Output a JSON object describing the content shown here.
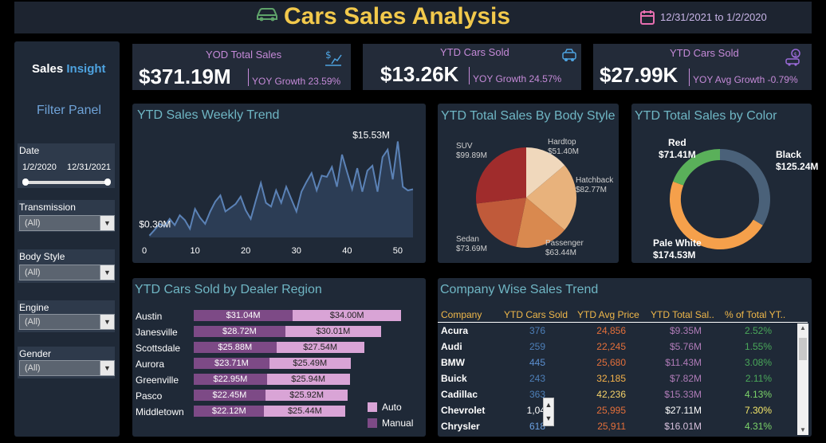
{
  "header": {
    "title": "Cars Sales Analysis",
    "date_range": "12/31/2021 to 1/2/2020"
  },
  "sidebar": {
    "brand_a": "Sales ",
    "brand_b": "Insight",
    "filter_panel": "Filter Panel",
    "date": {
      "label": "Date",
      "from": "1/2/2020",
      "to": "12/31/2021"
    },
    "filters": [
      {
        "label": "Transmission",
        "value": "(All)"
      },
      {
        "label": "Body Style",
        "value": "(All)"
      },
      {
        "label": "Engine",
        "value": "(All)"
      },
      {
        "label": "Gender",
        "value": "(All)"
      }
    ]
  },
  "kpis": [
    {
      "label": "YOD Total Sales",
      "value": "$371.19M",
      "sub": "YOY Growth 23.59%"
    },
    {
      "label": "YTD Cars Sold",
      "value": "$13.26K",
      "sub": "YOY Growth 24.57%"
    },
    {
      "label": "YTD Cars Sold",
      "value": "$27.99K",
      "sub": "YOY Avg Growth -0.79%"
    }
  ],
  "cards": {
    "weekly": "YTD Sales Weekly Trend",
    "body": "YTD Total Sales By Body Style",
    "color": "YTD Total Sales by Color",
    "region": "YTD Cars Sold by Dealer Region",
    "company": "Company Wise Sales Trend"
  },
  "colors": {
    "accent_title": "#f2c94c",
    "line": "#5b82b6",
    "auto": "#7d4a86",
    "manual": "#d9a4d6"
  },
  "chart_data": [
    {
      "type": "area",
      "title": "YTD Sales Weekly Trend",
      "xlabel": "",
      "ylabel": "",
      "xticks": [
        "0",
        "10",
        "20",
        "30",
        "40",
        "50"
      ],
      "xlim": [
        0,
        53
      ],
      "ylim": [
        0,
        16.5
      ],
      "x": [
        1,
        2,
        3,
        4,
        5,
        6,
        7,
        8,
        9,
        10,
        11,
        12,
        13,
        14,
        15,
        16,
        17,
        18,
        19,
        20,
        21,
        22,
        23,
        24,
        25,
        26,
        27,
        28,
        29,
        30,
        31,
        32,
        33,
        34,
        35,
        36,
        37,
        38,
        39,
        40,
        41,
        42,
        43,
        44,
        45,
        46,
        47,
        48,
        49,
        50,
        51,
        52,
        53
      ],
      "y": [
        0.3,
        1.2,
        2.2,
        1.8,
        3.0,
        2.0,
        3.6,
        2.8,
        1.4,
        4.6,
        3.2,
        2.2,
        4.2,
        5.8,
        6.8,
        4.2,
        4.8,
        5.4,
        6.6,
        4.4,
        3.0,
        6.0,
        8.8,
        5.6,
        5.0,
        7.6,
        5.6,
        8.2,
        6.2,
        4.2,
        7.4,
        9.0,
        10.4,
        7.6,
        10.0,
        9.8,
        11.4,
        8.2,
        13.4,
        10.6,
        7.8,
        11.2,
        7.4,
        10.8,
        11.6,
        7.4,
        13.0,
        14.2,
        9.4,
        15.53,
        8.2,
        7.6,
        7.8
      ],
      "annotations": [
        {
          "x": 1,
          "y": 0.3,
          "text": "$0.30M"
        },
        {
          "x": 50,
          "y": 15.53,
          "text": "$15.53M"
        }
      ]
    },
    {
      "type": "pie",
      "title": "YTD Total Sales By Body Style",
      "labels": [
        "Hardtop",
        "Hatchback",
        "Passenger",
        "Sedan",
        "SUV"
      ],
      "values": [
        51.4,
        82.77,
        63.44,
        73.69,
        99.89
      ],
      "value_labels": [
        "$51.40M",
        "$82.77M",
        "$63.44M",
        "$73.69M",
        "$99.89M"
      ],
      "colors": [
        "#f0d8bc",
        "#e8b27c",
        "#d9894f",
        "#c05a3a",
        "#a02c2c"
      ]
    },
    {
      "type": "pie",
      "subtype": "donut",
      "title": "YTD Total Sales by Color",
      "labels": [
        "Black",
        "Pale White",
        "Red"
      ],
      "values": [
        125.24,
        174.53,
        71.41
      ],
      "value_labels": [
        "$125.24M",
        "$174.53M",
        "$71.41M"
      ],
      "colors": [
        "#4a6179",
        "#f5a04b",
        "#5ab05a"
      ]
    },
    {
      "type": "bar",
      "orientation": "horizontal",
      "stacked": true,
      "title": "YTD Cars Sold by Dealer Region",
      "categories": [
        "Austin",
        "Janesville",
        "Scottsdale",
        "Aurora",
        "Greenville",
        "Pasco",
        "Middletown"
      ],
      "series": [
        {
          "name": "Auto",
          "values": [
            31.04,
            28.72,
            25.88,
            23.71,
            22.95,
            22.45,
            22.12
          ],
          "labels": [
            "$31.04M",
            "$28.72M",
            "$25.88M",
            "$23.71M",
            "$22.95M",
            "$22.45M",
            "$22.12M"
          ]
        },
        {
          "name": "Manual",
          "values": [
            34.0,
            30.01,
            27.54,
            25.49,
            25.94,
            25.92,
            25.44
          ],
          "labels": [
            "$34.00M",
            "$30.01M",
            "$27.54M",
            "$25.49M",
            "$25.94M",
            "$25.92M",
            "$25.44M"
          ]
        }
      ],
      "legend": "bottom-right"
    },
    {
      "type": "table",
      "title": "Company Wise Sales Trend",
      "columns": [
        "Company",
        "YTD Cars Sold",
        "YTD Avg Price",
        "YTD Total Sal..",
        "% of Total YT.."
      ],
      "rows": [
        [
          "Acura",
          "376",
          "24,856",
          "$9.35M",
          "2.52%"
        ],
        [
          "Audi",
          "259",
          "22,245",
          "$5.76M",
          "1.55%"
        ],
        [
          "BMW",
          "445",
          "25,680",
          "$11.43M",
          "3.08%"
        ],
        [
          "Buick",
          "243",
          "32,185",
          "$7.82M",
          "2.11%"
        ],
        [
          "Cadillac",
          "363",
          "42,236",
          "$15.33M",
          "4.13%"
        ],
        [
          "Chevrolet",
          "1,04",
          "25,995",
          "$27.11M",
          "7.30%"
        ],
        [
          "Chrysler",
          "618",
          "25,911",
          "$16.01M",
          "4.31%"
        ]
      ]
    }
  ]
}
